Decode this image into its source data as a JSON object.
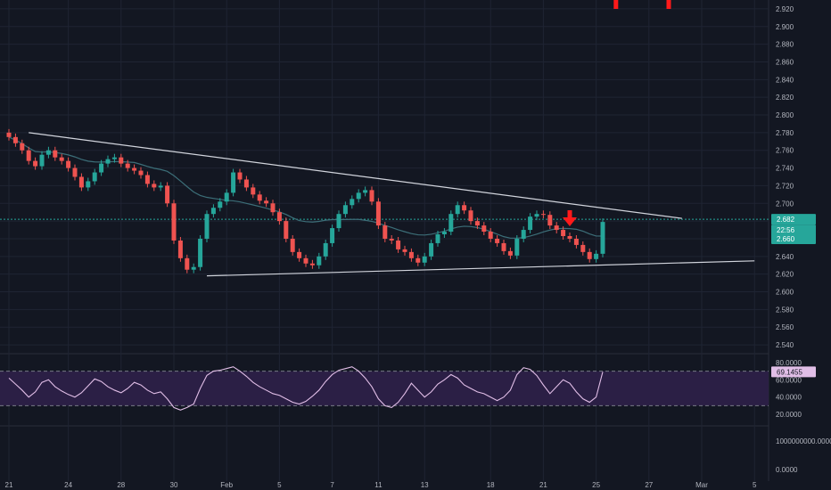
{
  "colors": {
    "background": "#131722",
    "grid": "#1f2433",
    "up_candle": "#26a69a",
    "down_candle": "#ef5350",
    "moving_average": "#3c6e78",
    "trendline": "#d1d4dc",
    "rsi_line": "#e1bee7",
    "rsi_band": "#2b1f45",
    "current_price_line": "#26a69a",
    "arrow": "#ff1a1a"
  },
  "chart_data": [
    {
      "type": "candlestick",
      "title": "",
      "y_ticks": [
        "2.920",
        "2.900",
        "2.880",
        "2.860",
        "2.840",
        "2.820",
        "2.800",
        "2.780",
        "2.760",
        "2.740",
        "2.720",
        "2.700",
        "2.680",
        "2.660",
        "2.640",
        "2.620",
        "2.600",
        "2.580",
        "2.560",
        "2.540"
      ],
      "ylim": [
        2.53,
        2.93
      ],
      "x_ticks": [
        "21",
        "24",
        "28",
        "30",
        "Feb",
        "5",
        "7",
        "11",
        "13",
        "18",
        "21",
        "25",
        "27",
        "Mar",
        "5"
      ],
      "x_tick_index": [
        0,
        9,
        17,
        25,
        33,
        41,
        49,
        56,
        63,
        73,
        81,
        89,
        97,
        105,
        113
      ],
      "close": [
        2.775,
        2.768,
        2.76,
        2.748,
        2.742,
        2.755,
        2.76,
        2.752,
        2.748,
        2.74,
        2.73,
        2.718,
        2.725,
        2.735,
        2.745,
        2.75,
        2.752,
        2.745,
        2.74,
        2.737,
        2.732,
        2.722,
        2.718,
        2.72,
        2.7,
        2.658,
        2.638,
        2.625,
        2.628,
        2.66,
        2.688,
        2.695,
        2.702,
        2.712,
        2.735,
        2.727,
        2.718,
        2.71,
        2.703,
        2.7,
        2.69,
        2.68,
        2.66,
        2.645,
        2.638,
        2.632,
        2.63,
        2.64,
        2.655,
        2.672,
        2.688,
        2.698,
        2.705,
        2.712,
        2.715,
        2.702,
        2.675,
        2.66,
        2.658,
        2.648,
        2.645,
        2.638,
        2.633,
        2.64,
        2.655,
        2.665,
        2.668,
        2.688,
        2.698,
        2.692,
        2.68,
        2.675,
        2.668,
        2.66,
        2.655,
        2.646,
        2.641,
        2.66,
        2.67,
        2.685,
        2.688,
        2.687,
        2.675,
        2.67,
        2.663,
        2.66,
        2.653,
        2.645,
        2.637,
        2.643,
        2.679
      ],
      "current_price": "2.682",
      "countdown": "22:56",
      "ma_value": "2.660",
      "trendlines": [
        {
          "from": [
            3,
            2.78
          ],
          "to": [
            102,
            2.683
          ]
        },
        {
          "from": [
            30,
            2.618
          ],
          "to": [
            113,
            2.635
          ]
        }
      ],
      "arrows_at": [
        85,
        92,
        100
      ]
    },
    {
      "type": "line",
      "title": "",
      "y_ticks": [
        "80.0000",
        "60.0000",
        "40.0000",
        "20.0000"
      ],
      "upper_band": 70,
      "lower_band": 30,
      "value": [
        62,
        55,
        48,
        40,
        46,
        57,
        60,
        52,
        47,
        43,
        40,
        45,
        53,
        61,
        58,
        52,
        48,
        45,
        50,
        57,
        54,
        48,
        44,
        46,
        38,
        28,
        25,
        28,
        32,
        50,
        65,
        70,
        71,
        73,
        75,
        70,
        64,
        57,
        52,
        48,
        44,
        42,
        38,
        34,
        32,
        35,
        41,
        48,
        58,
        66,
        71,
        73,
        75,
        70,
        62,
        52,
        38,
        30,
        28,
        34,
        44,
        56,
        48,
        40,
        46,
        55,
        60,
        66,
        62,
        54,
        50,
        46,
        44,
        40,
        36,
        40,
        48,
        66,
        74,
        72,
        65,
        54,
        44,
        52,
        60,
        56,
        46,
        38,
        34,
        40,
        69.1455
      ],
      "current_value": "69.1455"
    },
    {
      "type": "line",
      "title": "",
      "y_ticks": [
        "1000000000.0000",
        "0.0000"
      ]
    }
  ]
}
